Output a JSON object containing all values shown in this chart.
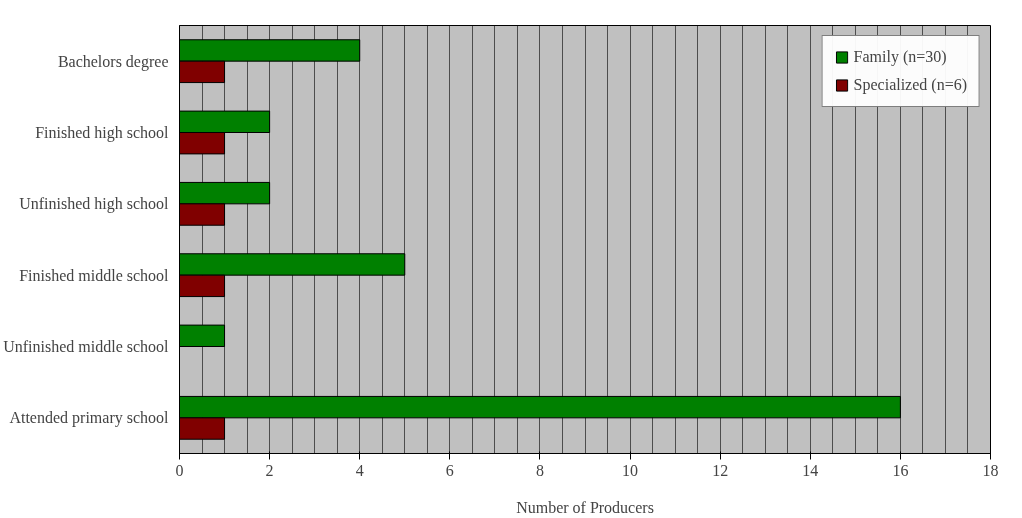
{
  "chart_data": {
    "type": "bar",
    "orientation": "horizontal",
    "xlabel": "Number of Producers",
    "categories": [
      "Bachelors degree",
      "Finished high school",
      "Unfinished high school",
      "Finished middle school",
      "Unfinished middle school",
      "Attended primary school"
    ],
    "series": [
      {
        "name": "Family (n=30)",
        "color": "#008000",
        "values": [
          4,
          2,
          2,
          5,
          1,
          16
        ]
      },
      {
        "name": "Specialized (n=6)",
        "color": "#800000",
        "values": [
          1,
          1,
          1,
          1,
          null,
          1
        ]
      }
    ],
    "xlim": [
      0,
      18
    ],
    "xticks": [
      0,
      2,
      4,
      6,
      8,
      10,
      12,
      14,
      16,
      18
    ],
    "grid": "x",
    "legend": "top right"
  }
}
